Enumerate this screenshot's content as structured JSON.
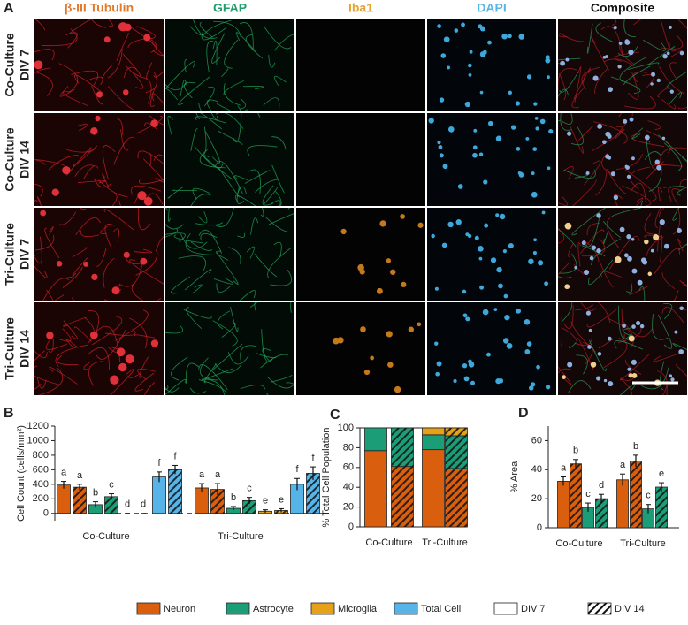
{
  "panel_a": {
    "label": "A",
    "columns": [
      {
        "name": "β-III Tubulin",
        "color": "#e07a2c"
      },
      {
        "name": "GFAP",
        "color": "#1f9e6e"
      },
      {
        "name": "Iba1",
        "color": "#e3a336"
      },
      {
        "name": "DAPI",
        "color": "#59b6df"
      },
      {
        "name": "Composite",
        "color": "#111111"
      }
    ],
    "rows": [
      [
        "Co-Culture",
        "DIV 7"
      ],
      [
        "Co-Culture",
        "DIV 14"
      ],
      [
        "Tri-Culture",
        "DIV 7"
      ],
      [
        "Tri-Culture",
        "DIV 14"
      ]
    ]
  },
  "chart_data": [
    {
      "type": "bar",
      "panel": "B",
      "y_label": "Cell Count (cells/mm²)",
      "categories": [
        "Co-Culture",
        "Tri-Culture"
      ],
      "conditions": [
        "DIV 7",
        "DIV 14"
      ],
      "ylim": [
        -100,
        1200
      ],
      "yticks": [
        0,
        200,
        400,
        600,
        800,
        1000,
        1200
      ],
      "series": [
        {
          "name": "Neuron",
          "color": "#d95f0e",
          "values": [
            [
              390,
              360
            ],
            [
              350,
              330
            ]
          ],
          "errors": [
            [
              50,
              40
            ],
            [
              60,
              80
            ]
          ],
          "letters": [
            [
              "a",
              "a"
            ],
            [
              "a",
              "a"
            ]
          ]
        },
        {
          "name": "Astrocyte",
          "color": "#1b9e77",
          "values": [
            [
              120,
              230
            ],
            [
              70,
              175
            ]
          ],
          "errors": [
            [
              40,
              40
            ],
            [
              25,
              45
            ]
          ],
          "letters": [
            [
              "b",
              "c"
            ],
            [
              "b",
              "c"
            ]
          ]
        },
        {
          "name": "Microglia",
          "color": "#e6a11a",
          "values": [
            [
              0,
              0
            ],
            [
              30,
              40
            ]
          ],
          "errors": [
            [
              0,
              0
            ],
            [
              20,
              25
            ]
          ],
          "letters": [
            [
              "d",
              "d"
            ],
            [
              "e",
              "e"
            ]
          ]
        },
        {
          "name": "Total Cell",
          "color": "#56b4e9",
          "values": [
            [
              500,
              600
            ],
            [
              400,
              550
            ]
          ],
          "errors": [
            [
              70,
              60
            ],
            [
              80,
              90
            ]
          ],
          "letters": [
            [
              "f",
              "f"
            ],
            [
              "f",
              "f"
            ]
          ]
        }
      ]
    },
    {
      "type": "stacked_bar",
      "panel": "C",
      "y_label": "% Total Cell Population",
      "categories": [
        "Co-Culture",
        "Tri-Culture"
      ],
      "ylim": [
        0,
        100
      ],
      "yticks": [
        0,
        20,
        40,
        60,
        80,
        100
      ],
      "series": [
        {
          "color": "#d95f0e",
          "values": [
            [
              77,
              61
            ],
            [
              78,
              59
            ]
          ]
        },
        {
          "color": "#1b9e77",
          "values": [
            [
              23,
              39
            ],
            [
              15,
              33
            ]
          ]
        },
        {
          "color": "#e6a11a",
          "values": [
            [
              0,
              0
            ],
            [
              7,
              8
            ]
          ]
        }
      ]
    },
    {
      "type": "bar",
      "panel": "D",
      "y_label": "% Area",
      "categories": [
        "Co-Culture",
        "Tri-Culture"
      ],
      "ylim": [
        0,
        70
      ],
      "yticks": [
        0,
        20,
        40,
        60
      ],
      "series": [
        {
          "color": "#d95f0e",
          "values": [
            [
              32,
              44
            ],
            [
              33,
              46
            ]
          ],
          "errors": [
            [
              3,
              3
            ],
            [
              4,
              4
            ]
          ],
          "letters": [
            [
              "a",
              "b"
            ],
            [
              "a",
              "b"
            ]
          ]
        },
        {
          "color": "#1b9e77",
          "values": [
            [
              14,
              20
            ],
            [
              13,
              28
            ]
          ],
          "errors": [
            [
              3,
              3
            ],
            [
              3,
              3
            ]
          ],
          "letters": [
            [
              "c",
              "d"
            ],
            [
              "c",
              "e"
            ]
          ]
        }
      ]
    }
  ]
}
